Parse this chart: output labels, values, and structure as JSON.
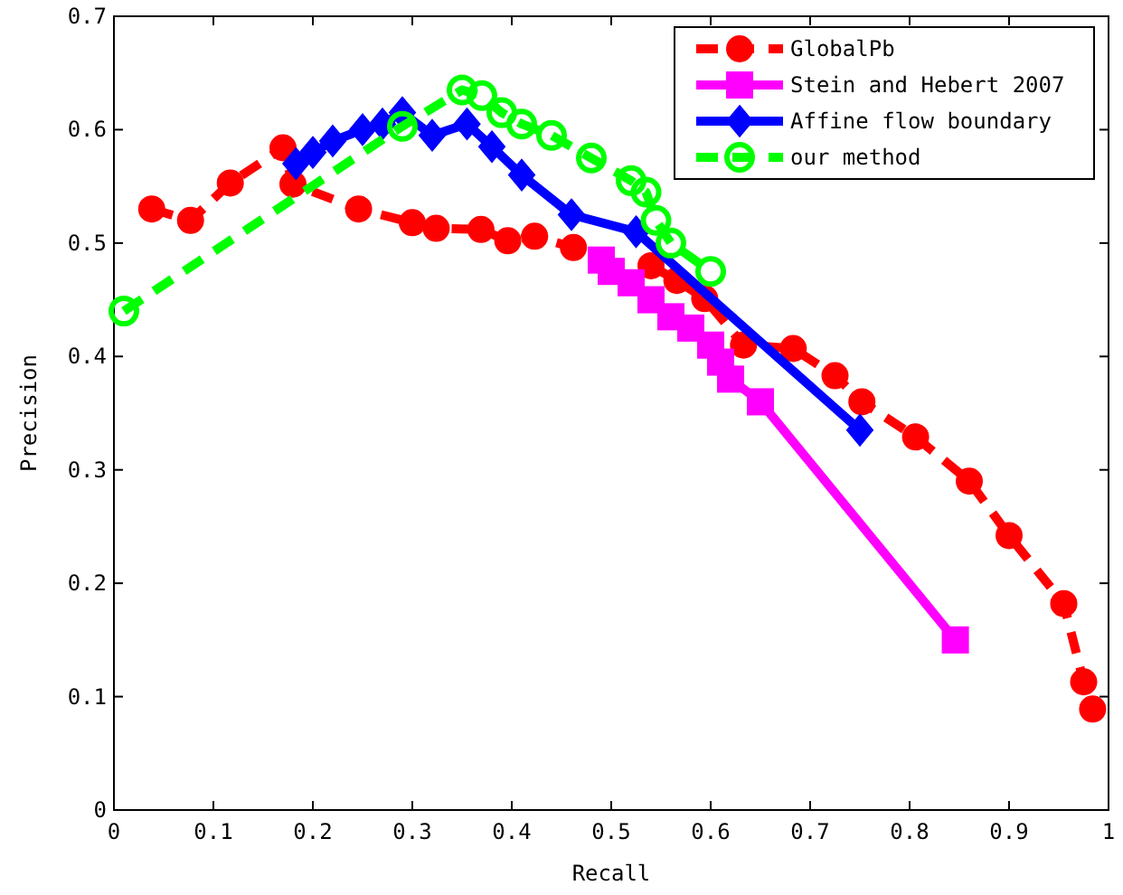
{
  "chart_data": {
    "type": "line",
    "xlabel": "Recall",
    "ylabel": "Precision",
    "xlim": [
      0,
      1
    ],
    "ylim": [
      0,
      0.7
    ],
    "xticks": [
      0,
      0.1,
      0.2,
      0.3,
      0.4,
      0.5,
      0.6,
      0.7,
      0.8,
      0.9,
      1
    ],
    "yticks": [
      0,
      0.1,
      0.2,
      0.3,
      0.4,
      0.5,
      0.6,
      0.7
    ],
    "grid": false,
    "legend": "top right",
    "series": [
      {
        "name": "GlobalPb",
        "color": "#ff0000",
        "marker": "circle",
        "line_style": "dashed",
        "x": [
          0.038,
          0.077,
          0.117,
          0.17,
          0.18,
          0.246,
          0.3,
          0.324,
          0.369,
          0.396,
          0.423,
          0.462,
          0.5,
          0.54,
          0.566,
          0.594,
          0.633,
          0.683,
          0.725,
          0.752,
          0.806,
          0.86,
          0.9,
          0.955,
          0.975,
          0.984
        ],
        "values": [
          0.53,
          0.52,
          0.553,
          0.584,
          0.552,
          0.53,
          0.518,
          0.513,
          0.512,
          0.502,
          0.506,
          0.496,
          null,
          0.48,
          0.467,
          0.451,
          0.41,
          0.407,
          0.383,
          0.36,
          0.329,
          0.29,
          0.242,
          0.182,
          0.113,
          0.089
        ]
      },
      {
        "name": "Stein and Hebert 2007",
        "color": "#ff00ff",
        "marker": "square",
        "line_style": "solid",
        "x": [
          0.49,
          0.5,
          0.52,
          0.54,
          0.56,
          0.58,
          0.6,
          0.61,
          0.62,
          0.65,
          0.846
        ],
        "values": [
          0.485,
          0.475,
          0.465,
          0.45,
          0.435,
          0.425,
          0.41,
          0.395,
          0.38,
          0.36,
          0.15
        ]
      },
      {
        "name": "Affine flow boundary",
        "color": "#0000ff",
        "marker": "diamond",
        "line_style": "solid",
        "x": [
          0.183,
          0.2,
          0.22,
          0.25,
          0.27,
          0.29,
          0.32,
          0.355,
          0.38,
          0.41,
          0.46,
          0.525,
          0.75
        ],
        "values": [
          0.57,
          0.58,
          0.59,
          0.6,
          0.605,
          0.615,
          0.595,
          0.605,
          0.585,
          0.56,
          0.525,
          0.51,
          0.335
        ]
      },
      {
        "name": "our method",
        "color": "#00ff00",
        "marker": "circle",
        "line_style": "dashed",
        "x": [
          0.01,
          0.29,
          0.35,
          0.37,
          0.39,
          0.41,
          0.44,
          0.48,
          0.52,
          0.535,
          0.545,
          0.56,
          0.6
        ],
        "values": [
          0.44,
          0.603,
          0.635,
          0.63,
          0.615,
          0.605,
          0.595,
          0.575,
          0.555,
          0.545,
          0.52,
          0.5,
          0.475
        ]
      }
    ]
  }
}
